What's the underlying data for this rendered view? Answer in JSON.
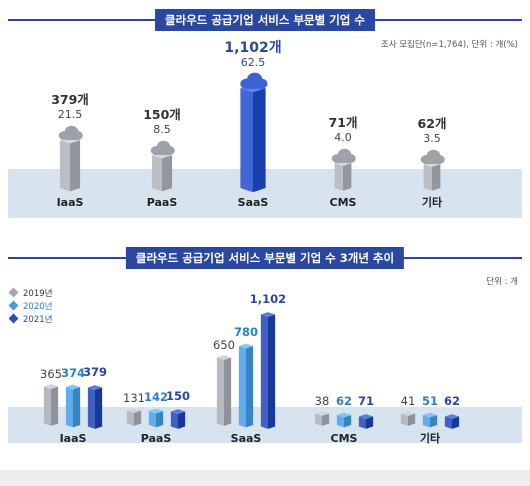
{
  "chart_data": [
    {
      "type": "bar",
      "title": "클라우드 공급기업 서비스 부문별 기업 수",
      "note": "조사 모집단(n=1,764), 단위 : 개(%)",
      "categories": [
        "IaaS",
        "PaaS",
        "SaaS",
        "CMS",
        "기타"
      ],
      "counts": [
        "379개",
        "150개",
        "1,102개",
        "71개",
        "62개"
      ],
      "values": [
        379,
        150,
        1102,
        71,
        62
      ],
      "percents": [
        "21.5",
        "8.5",
        "62.5",
        "4.0",
        "3.5"
      ],
      "highlight_index": 2
    },
    {
      "type": "bar",
      "title": "클라우드 공급기업 서비스 부문별 기업 수 3개년 추이",
      "note": "단위 : 개",
      "categories": [
        "IaaS",
        "PaaS",
        "SaaS",
        "CMS",
        "기타"
      ],
      "series": [
        {
          "name": "2019년",
          "values": [
            365,
            131,
            650,
            38,
            41
          ],
          "labels": [
            "365",
            "131",
            "650",
            "38",
            "41"
          ]
        },
        {
          "name": "2020년",
          "values": [
            374,
            142,
            780,
            62,
            51
          ],
          "labels": [
            "374",
            "142",
            "780",
            "62",
            "51"
          ]
        },
        {
          "name": "2021년",
          "values": [
            379,
            150,
            1102,
            71,
            62
          ],
          "labels": [
            "379",
            "150",
            "1,102",
            "71",
            "62"
          ]
        }
      ]
    }
  ],
  "colors": {
    "title_bg": "#2b48a0",
    "band": "#d8e3f0",
    "building_gray": "#a9acb3",
    "highlight": "#2f54c4",
    "series_2019": "#a5a8ae",
    "series_2020": "#4f9bd9",
    "series_2021": "#2f4fb0",
    "label_2019": "#444444",
    "label_2020": "#2a7ec9",
    "label_2021": "#2b44a6"
  }
}
